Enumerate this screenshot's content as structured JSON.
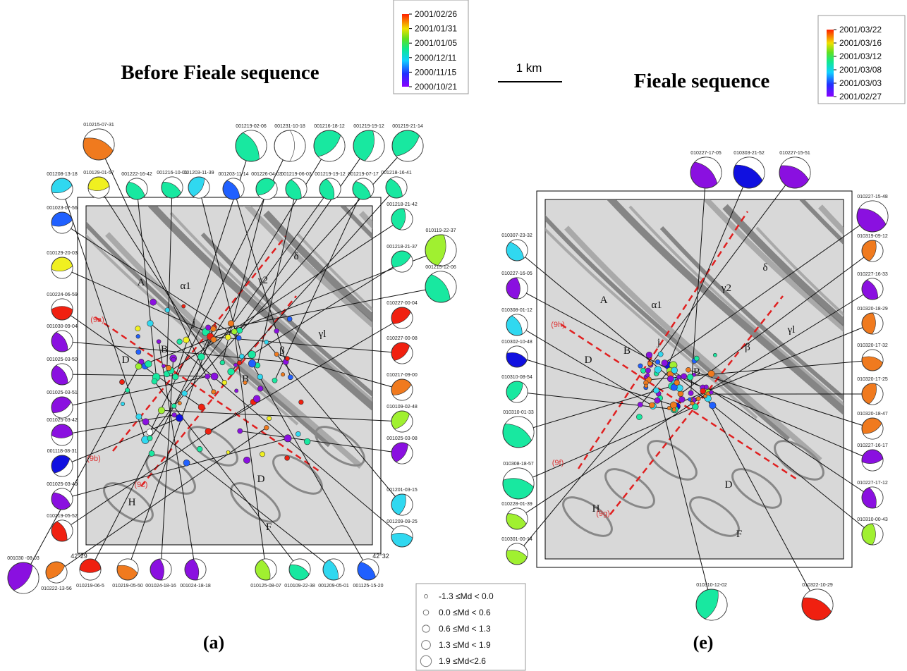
{
  "scale": "1 km",
  "legend": [
    "-1.3 ≤Md < 0.0",
    "0.0 ≤Md < 0.6",
    "0.6 ≤Md < 1.3",
    "1.3 ≤Md < 1.9",
    "1.9 ≤Md<2.6"
  ],
  "panels": [
    {
      "title": "Before Fieale sequence",
      "label": "(a)",
      "colorbar": [
        "2001/02/26",
        "2001/01/31",
        "2001/01/05",
        "2000/12/11",
        "2000/11/15",
        "2000/10/21"
      ],
      "map_labels": [
        "A",
        "α1",
        "j",
        "B",
        "D",
        "B",
        "β",
        "γl",
        "γ2",
        "δ",
        "H",
        "D",
        "F",
        "(9a)",
        "(9b)",
        "(9c)",
        "42°29",
        "42°32"
      ],
      "mechanisms": [
        "010215-07-31",
        "001219-02-06",
        "001231-10-18",
        "001216-18-12",
        "001219-19-12",
        "001219-21-14",
        "010129-01-57",
        "001208-13-18",
        "001222-16-42",
        "001216-10-01",
        "001203-11-39",
        "001203-11-14",
        "001226-04-03",
        "001219-06-03",
        "001219-19-12",
        "001219-07-17",
        "001218-16-41",
        "001023-07-56",
        "010129-20-03",
        "010224-06-59",
        "001030-09-04",
        "001025-03-50",
        "001025-03-51",
        "001025-03-42",
        "001118-08-31",
        "001025-03-40",
        "010219-05-52",
        "001030 -08-03",
        "001218-21-42",
        "001218-21-37",
        "010119-22-37",
        "001215-12-06",
        "010227-00-04",
        "010227-00-08",
        "010217-09-00",
        "010109-02-48",
        "001025-03-08",
        "001201-03-15",
        "001209-09-25",
        "010222-13-56",
        "010219-06-5",
        "010219-05-50",
        "001024-18-16",
        "001024-18-18",
        "010125-08-07",
        "010109-22-38",
        "001209-05-01",
        "001125-15-20"
      ]
    },
    {
      "title": "Fieale sequence",
      "label": "(e)",
      "colorbar": [
        "2001/03/22",
        "2001/03/16",
        "2001/03/12",
        "2001/03/08",
        "2001/03/03",
        "2001/02/27"
      ],
      "map_labels": [
        "A",
        "α1",
        "j",
        "B",
        "D",
        "B",
        "β",
        "γl",
        "γ2",
        "δ",
        "H",
        "D",
        "F",
        "(9h)",
        "(9f)",
        "(9g)"
      ],
      "mechanisms": [
        "010227-17-05",
        "010303-21-52",
        "010227-15-51",
        "010227-15-48",
        "010307-23-32",
        "010227-16-05",
        "010308-01-12",
        "010302-10-48",
        "010310-08-54",
        "010310-01-33",
        "010308-18-57",
        "010228-01-39",
        "010301-00-14",
        "010319-09-12",
        "010227-16-33",
        "010320-18-29",
        "010320-17-32",
        "010320-17-25",
        "010320-18-47",
        "010227-16-17",
        "010227-17-12",
        "010310-00-43",
        "010310-12-02",
        "010322-10-29"
      ]
    }
  ]
}
